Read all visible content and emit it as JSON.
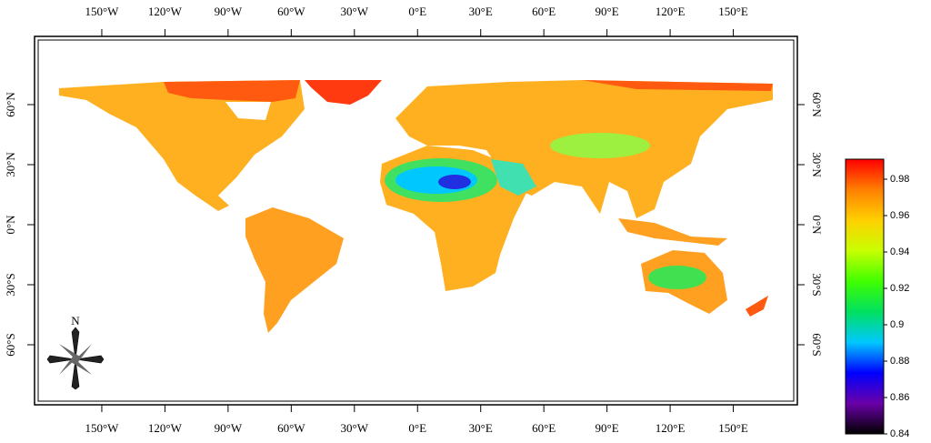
{
  "map": {
    "xlim": [
      -180,
      180
    ],
    "ylim": [
      -90,
      90
    ],
    "xticks": [
      {
        "value": -150,
        "label": "150°W"
      },
      {
        "value": -120,
        "label": "120°W"
      },
      {
        "value": -90,
        "label": "90°W"
      },
      {
        "value": -60,
        "label": "60°W"
      },
      {
        "value": -30,
        "label": "30°W"
      },
      {
        "value": 0,
        "label": "0°E"
      },
      {
        "value": 30,
        "label": "30°E"
      },
      {
        "value": 60,
        "label": "60°E"
      },
      {
        "value": 90,
        "label": "90°E"
      },
      {
        "value": 120,
        "label": "120°E"
      },
      {
        "value": 150,
        "label": "150°E"
      }
    ],
    "yticks": [
      {
        "value": 60,
        "label": "60°N"
      },
      {
        "value": 30,
        "label": "30°N"
      },
      {
        "value": 0,
        "label": "0°N"
      },
      {
        "value": -30,
        "label": "30°S"
      },
      {
        "value": -60,
        "label": "60°S"
      }
    ],
    "compass_label": "N",
    "colorbar": {
      "lim": [
        0.84,
        0.991
      ],
      "ticks": [
        0.84,
        0.86,
        0.88,
        0.9,
        0.92,
        0.94,
        0.96,
        0.98
      ],
      "colors": [
        "#000000",
        "#6a00a8",
        "#0000ff",
        "#00c8ff",
        "#00e060",
        "#40ff00",
        "#c8ff00",
        "#ffd000",
        "#ff8000",
        "#ff0000"
      ]
    }
  }
}
